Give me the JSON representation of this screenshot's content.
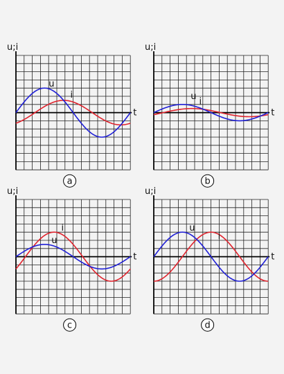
{
  "colors": {
    "u": "#1f1fd6",
    "i": "#e0232d",
    "grid": "#222222",
    "background": "#f3f3f3"
  },
  "chart_data": [
    {
      "panel": "a",
      "type": "line",
      "y_axis_label": "u;i",
      "x_axis_label": "t",
      "series": [
        {
          "name": "u",
          "amplitude": 3.0,
          "phase_deg": 0
        },
        {
          "name": "i",
          "amplitude": 1.5,
          "phase_deg": -60
        }
      ]
    },
    {
      "panel": "b",
      "type": "line",
      "y_axis_label": "u;i",
      "x_axis_label": "t",
      "series": [
        {
          "name": "u",
          "amplitude": 1.0,
          "phase_deg": 0
        },
        {
          "name": "i",
          "amplitude": 0.5,
          "phase_deg": -30
        }
      ]
    },
    {
      "panel": "c",
      "type": "line",
      "y_axis_label": "u;i",
      "x_axis_label": "t",
      "series": [
        {
          "name": "u",
          "amplitude": 1.5,
          "phase_deg": 0
        },
        {
          "name": "i",
          "amplitude": 3.0,
          "phase_deg": -30
        }
      ]
    },
    {
      "panel": "d",
      "type": "line",
      "y_axis_label": "u;i",
      "x_axis_label": "t",
      "series": [
        {
          "name": "u",
          "amplitude": 3.0,
          "phase_deg": 0
        },
        {
          "name": "i",
          "amplitude": 3.0,
          "phase_deg": -90
        }
      ]
    }
  ]
}
